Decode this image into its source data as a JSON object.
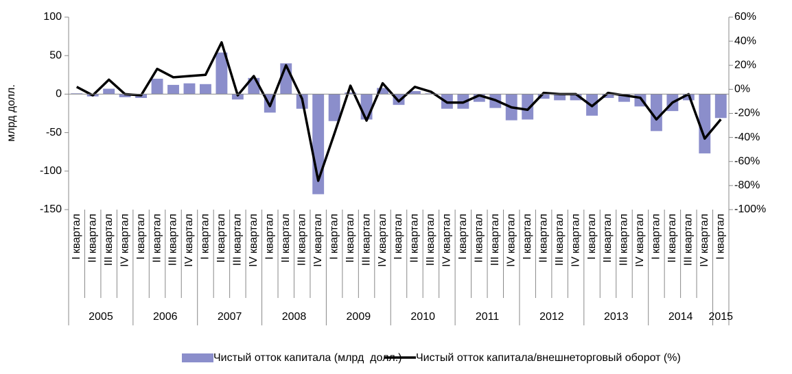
{
  "chart_data": {
    "type": "bar_line",
    "y_label": "млрд долл.",
    "categories": [
      "I квартал",
      "II квартал",
      "III квартал",
      "IV квартал",
      "I квартал",
      "II квартал",
      "III квартал",
      "IV квартал",
      "I квартал",
      "II квартал",
      "III квартал",
      "IV квартал",
      "I квартал",
      "II квартал",
      "III квартал",
      "IV квартал",
      "I квартал",
      "II квартал",
      "III квартал",
      "IV квартал",
      "I квартал",
      "II квартал",
      "III квартал",
      "IV квартал",
      "I квартал",
      "II квартал",
      "III квартал",
      "IV квартал",
      "I квартал",
      "II квартал",
      "III квартал",
      "IV квартал",
      "I квартал",
      "II квартал",
      "III квартал",
      "IV квартал",
      "I квартал",
      "II квартал",
      "III квартал",
      "IV квартал",
      "I квартал"
    ],
    "category_groups": [
      "2005",
      "2006",
      "2007",
      "2008",
      "2009",
      "2010",
      "2011",
      "2012",
      "2013",
      "2014",
      "2015"
    ],
    "series": [
      {
        "name": "Чистый отток капитала (млрд  долл.)",
        "type": "bar",
        "color": "#8b8ecb",
        "axis": "y",
        "values": [
          1,
          -3,
          7,
          -4,
          -5,
          20,
          12,
          14,
          13,
          54,
          -7,
          21,
          -24,
          40,
          -19,
          -130,
          -35,
          2,
          -33,
          8,
          -14,
          4,
          1,
          -19,
          -19,
          -10,
          -18,
          -34,
          -33,
          -6,
          -8,
          -8,
          -28,
          -5,
          -10,
          -16,
          -48,
          -22,
          -8,
          -77,
          -31
        ]
      },
      {
        "name": "Чистый отток капитала/внешнеторговый оборот (%)",
        "type": "line",
        "color": "#000000",
        "axis": "y2",
        "values": [
          2,
          -5,
          8,
          -4,
          -5,
          17,
          10,
          11,
          12,
          39,
          -5,
          11,
          -14,
          20,
          -8,
          -76,
          -37,
          3,
          -26,
          5,
          -10,
          2,
          -2,
          -11,
          -11,
          -5,
          -9,
          -15,
          -17,
          -3,
          -4,
          -4,
          -14,
          -3,
          -5,
          -7,
          -25,
          -11,
          -4,
          -41,
          -25
        ]
      }
    ],
    "ylim": [
      -150,
      100
    ],
    "yticks": [
      -150,
      -100,
      -50,
      0,
      50,
      100
    ],
    "y2lim": [
      -100,
      60
    ],
    "y2ticks": [
      {
        "value": -100,
        "label": "-100%"
      },
      {
        "value": -80,
        "label": "-80%"
      },
      {
        "value": -60,
        "label": "-60%"
      },
      {
        "value": -40,
        "label": "-40%"
      },
      {
        "value": -20,
        "label": "-20%"
      },
      {
        "value": 0,
        "label": "0%"
      },
      {
        "value": 20,
        "label": "20%"
      },
      {
        "value": 40,
        "label": "40%"
      },
      {
        "value": 60,
        "label": "60%"
      }
    ],
    "grid": false,
    "legend": "bottom"
  }
}
